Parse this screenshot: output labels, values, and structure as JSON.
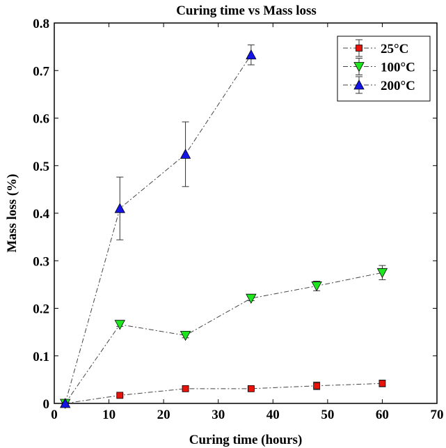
{
  "chart_data": {
    "type": "line",
    "title": "Curing time vs Mass loss",
    "xlabel": "Curing time (hours)",
    "ylabel": "Mass loss (%)",
    "xlim": [
      0,
      70
    ],
    "ylim": [
      0,
      0.8
    ],
    "xticks": [
      0,
      10,
      20,
      30,
      40,
      50,
      60,
      70
    ],
    "yticks": [
      0,
      0.1,
      0.2,
      0.3,
      0.4,
      0.5,
      0.6,
      0.7,
      0.8
    ],
    "xtick_labels": [
      "0",
      "10",
      "20",
      "30",
      "40",
      "50",
      "60",
      "70"
    ],
    "ytick_labels": [
      "0",
      "0.1",
      "0.2",
      "0.3",
      "0.4",
      "0.5",
      "0.6",
      "0.7",
      "0.8"
    ],
    "grid": false,
    "legend_position": "top-right",
    "line_style": "dash-dot",
    "series": [
      {
        "name": "25°C",
        "marker": "square",
        "color": "#e8140c",
        "x": [
          2,
          12,
          24,
          36,
          48,
          60
        ],
        "y": [
          0.0,
          0.017,
          0.031,
          0.031,
          0.037,
          0.042
        ],
        "err": [
          0.0,
          0.003,
          0.004,
          0.003,
          0.008,
          0.007
        ]
      },
      {
        "name": "100°C",
        "marker": "triangle-down",
        "color": "#1ee61e",
        "x": [
          2,
          12,
          24,
          36,
          48,
          60
        ],
        "y": [
          0.0,
          0.166,
          0.143,
          0.221,
          0.247,
          0.275
        ],
        "err": [
          0.0,
          0.004,
          0.005,
          0.005,
          0.01,
          0.015
        ]
      },
      {
        "name": "200°C",
        "marker": "triangle-up",
        "color": "#1414e6",
        "x": [
          2,
          12,
          24,
          36
        ],
        "y": [
          0.0,
          0.41,
          0.524,
          0.733
        ],
        "err": [
          0.0,
          0.066,
          0.068,
          0.021
        ]
      }
    ]
  }
}
